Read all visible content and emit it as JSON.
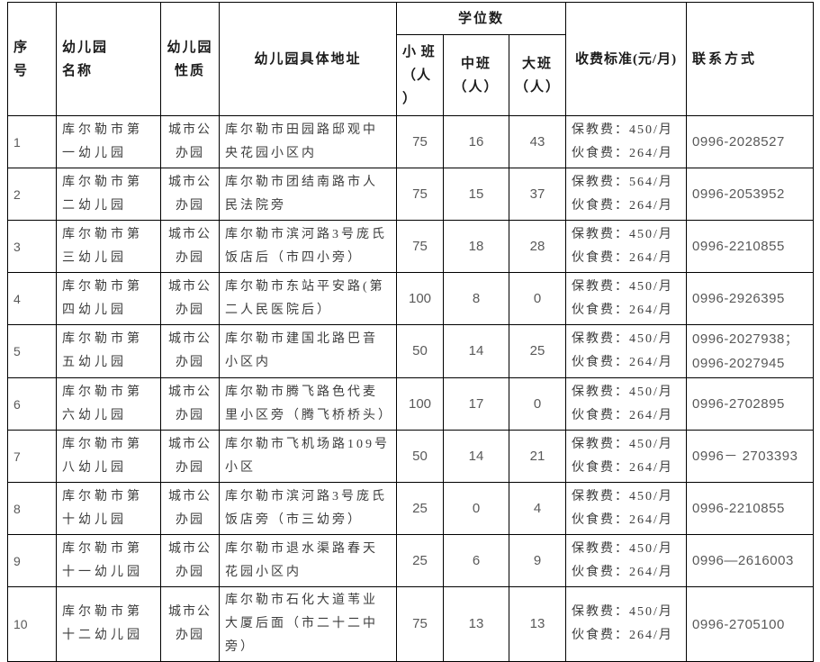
{
  "colors": {
    "border": "#000000",
    "header_text": "#1c1c1c",
    "body_text": "#3d3d3d",
    "numeric_text": "#595959",
    "background": "#ffffff"
  },
  "table": {
    "headers": {
      "index": "序\n号",
      "name": "幼儿园\n名称",
      "nature": "幼儿园\n性质",
      "address": "幼儿园具体地址",
      "seats_group": "学位数",
      "small_class": "小 班\n（人\n）",
      "middle_class": "中班\n（人）",
      "large_class": "大班\n（人）",
      "fee": "收费标准(元/月)",
      "contact": "联系方式"
    },
    "rows": [
      {
        "index": "1",
        "name": "库尔勒市第一幼儿园",
        "nature": "城市公办园",
        "address": "库尔勒市田园路邸观中央花园小区内",
        "small": "75",
        "middle": "16",
        "large": "43",
        "fee": "保教费：450/月\n伙食费：264/月",
        "contact": "0996-2028527"
      },
      {
        "index": "2",
        "name": "库尔勒市第二幼儿园",
        "nature": "城市公办园",
        "address": "库尔勒市团结南路市人民法院旁",
        "small": "75",
        "middle": "15",
        "large": "37",
        "fee": "保教费：564/月\n伙食费：264/月",
        "contact": "0996-2053952"
      },
      {
        "index": "3",
        "name": "库尔勒市第三幼儿园",
        "nature": "城市公办园",
        "address": "库尔勒市滨河路3号庞氏饭店后（市四小旁）",
        "small": "75",
        "middle": "18",
        "large": "28",
        "fee": "保教费：450/月\n伙食费：264/月",
        "contact": "0996-2210855"
      },
      {
        "index": "4",
        "name": "库尔勒市第四幼儿园",
        "nature": "城市公办园",
        "address": "库尔勒市东站平安路(第二人民医院后）",
        "small": "100",
        "middle": "8",
        "large": "0",
        "fee": "保教费：450/月\n伙食费：264/月",
        "contact": "0996-2926395"
      },
      {
        "index": "5",
        "name": "库尔勒市第五幼儿园",
        "nature": "城市公办园",
        "address": "库尔勒市建国北路巴音小区内",
        "small": "50",
        "middle": "14",
        "large": "25",
        "fee": "保教费：450/月\n伙食费：264/月",
        "contact": "0996-2027938；\n0996-2027945"
      },
      {
        "index": "6",
        "name": "库尔勒市第六幼儿园",
        "nature": "城市公办园",
        "address": "库尔勒市腾飞路色代麦里小区旁（腾飞桥桥头）",
        "small": "100",
        "middle": "17",
        "large": "0",
        "fee": "保教费：450/月\n伙食费：264/月",
        "contact": "0996-2702895"
      },
      {
        "index": "7",
        "name": "库尔勒市第八幼儿园",
        "nature": "城市公办园",
        "address": "库尔勒市飞机场路109号小区",
        "small": "50",
        "middle": "14",
        "large": "21",
        "fee": "保教费：450/月\n伙食费：264/月",
        "contact": "0996－ 2703393"
      },
      {
        "index": "8",
        "name": "库尔勒市第十幼儿园",
        "nature": "城市公办园",
        "address": "库尔勒市滨河路3号庞氏饭店旁（市三幼旁）",
        "small": "25",
        "middle": "0",
        "large": "4",
        "fee": "保教费：450/月\n伙食费：264/月",
        "contact": "0996-2210855"
      },
      {
        "index": "9",
        "name": "库尔勒市第十一幼儿园",
        "nature": "城市公办园",
        "address": "库尔勒市退水渠路春天花园小区内",
        "small": "25",
        "middle": "6",
        "large": "9",
        "fee": "保教费：450/月\n伙食费：264/月",
        "contact": "0996—2616003"
      },
      {
        "index": "10",
        "name": "库尔勒市第十二幼儿园",
        "nature": "城市公办园",
        "address": "库尔勒市石化大道苇业大厦后面（市二十二中旁）",
        "small": "75",
        "middle": "13",
        "large": "13",
        "fee": "保教费：450/月\n伙食费：264/月",
        "contact": "0996-2705100"
      }
    ]
  }
}
